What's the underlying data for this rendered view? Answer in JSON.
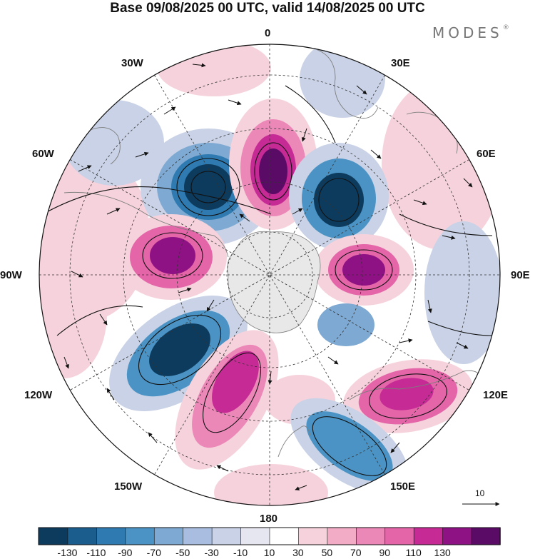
{
  "title": "Base 09/08/2025 00 UTC, valid 14/08/2025 00 UTC",
  "brand": {
    "text": "MODES",
    "mark": "®"
  },
  "map": {
    "projection": "south-polar-stereographic",
    "longitude_labels": [
      "0",
      "30E",
      "60E",
      "90E",
      "120E",
      "150E",
      "180",
      "150W",
      "120W",
      "90W",
      "60W",
      "30W"
    ],
    "reference_vector_label": "10",
    "field_colors": {
      "negative_strong": "#0d3b5e",
      "negative_mid": "#4b93c4",
      "negative_weak": "#c9d2e6",
      "positive_weak": "#f6d3dc",
      "positive_mid": "#e466a9",
      "positive_strong": "#5a0b66",
      "land": "#e8e8e8",
      "coast": "#7d7d7d"
    }
  },
  "colorbar": {
    "tick_labels": [
      "-130",
      "-110",
      "-90",
      "-70",
      "-50",
      "-30",
      "-10",
      "10",
      "30",
      "50",
      "70",
      "90",
      "110",
      "130"
    ],
    "colors": [
      "#0d3b5e",
      "#1b5e8e",
      "#2f7ab0",
      "#4b93c4",
      "#7ea9d2",
      "#a8bddf",
      "#c9d2e6",
      "#e6e6f1",
      "#ffffff",
      "#f6d3dc",
      "#f3acc5",
      "#ec88b8",
      "#e466a9",
      "#c62a95",
      "#8e1283",
      "#5a0b66"
    ]
  }
}
